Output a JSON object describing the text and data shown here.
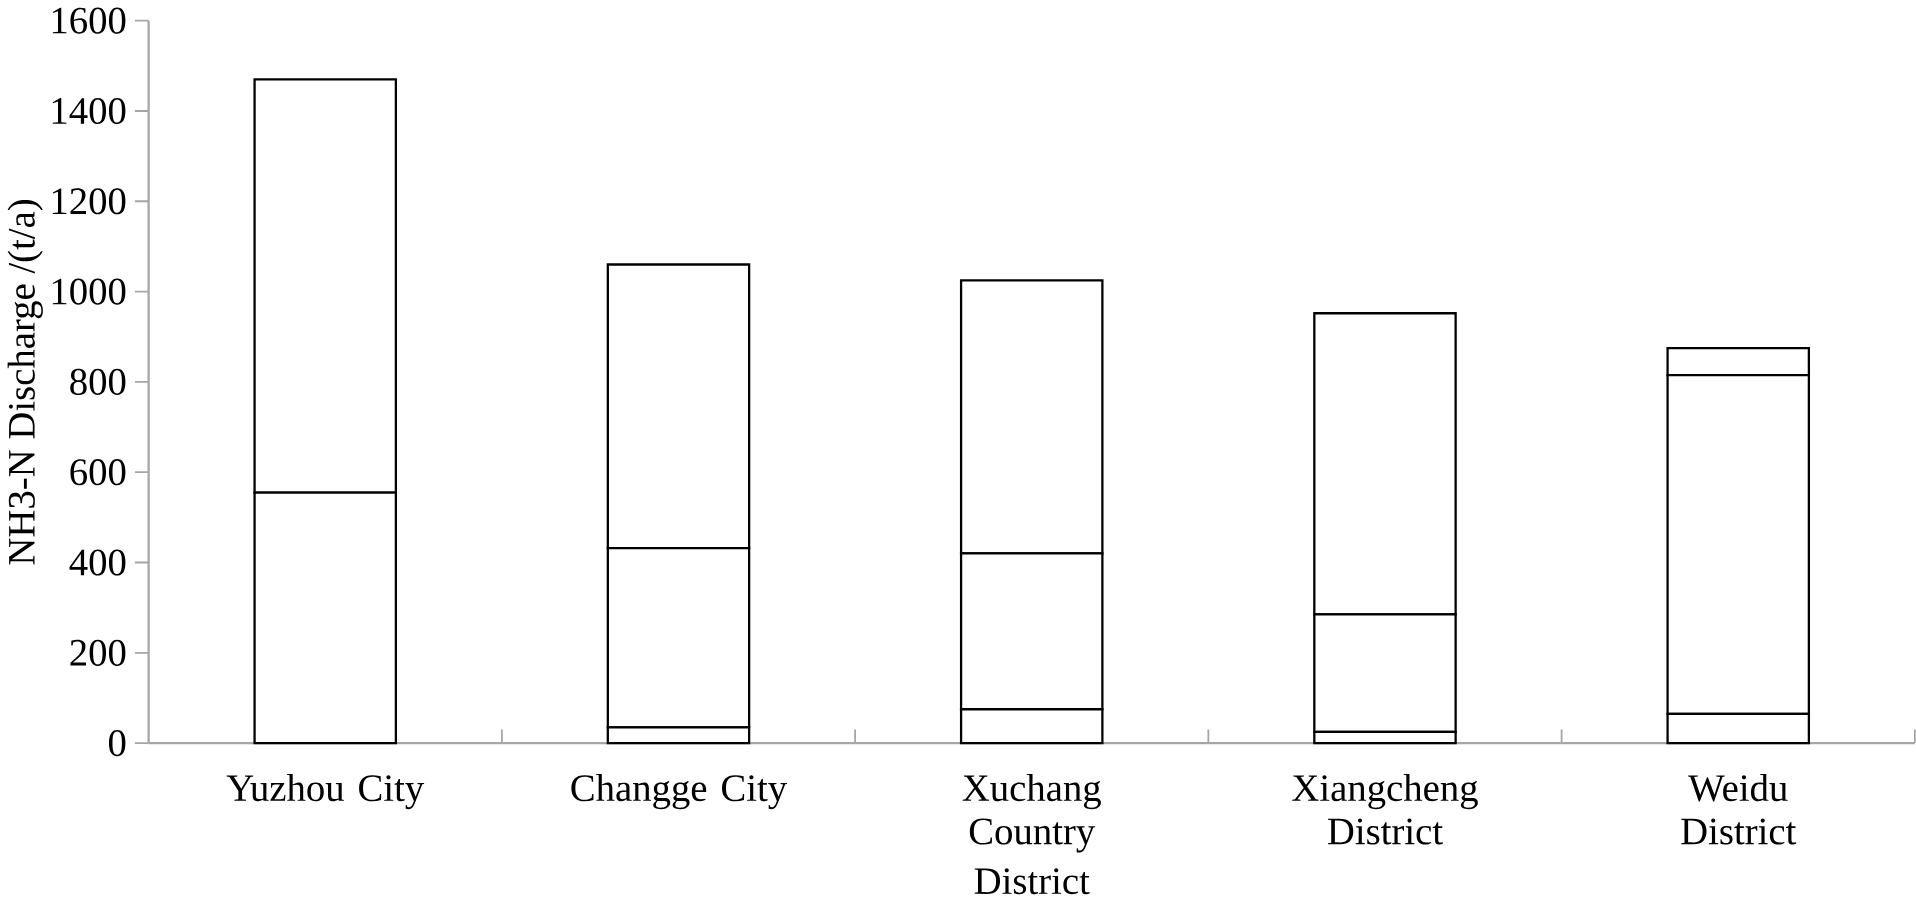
{
  "chart_data": {
    "type": "bar",
    "stacked": true,
    "xlabel": "District",
    "ylabel": "NH3-N Discharge /(t/a)",
    "categories": [
      "Yuzhou City",
      "Changge City",
      "Xuchang Country",
      "Xiangcheng District",
      "Weidu District"
    ],
    "series": [
      {
        "color": "#ffffff",
        "values": [
          0,
          35,
          75,
          25,
          65
        ]
      },
      {
        "color": "#ffffff",
        "values": [
          555,
          397,
          345,
          260,
          750
        ]
      },
      {
        "color": "#ffffff",
        "values": [
          915,
          628,
          605,
          667,
          60
        ]
      }
    ],
    "ylim": [
      0,
      1600
    ],
    "yticks": [
      0,
      200,
      400,
      600,
      800,
      1000,
      1200,
      1400,
      1600
    ]
  }
}
